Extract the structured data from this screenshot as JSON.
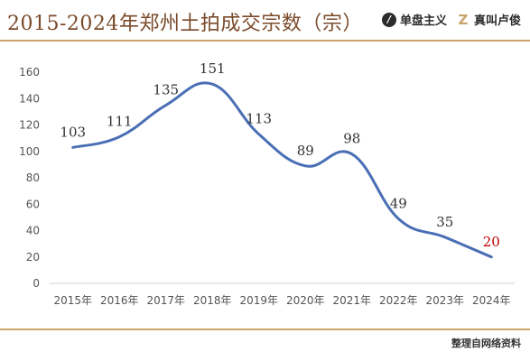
{
  "header": {
    "title": "2015-2024年郑州土拍成交宗数（宗）",
    "logo1_text": "单盘主义",
    "logo1_icon": "brand-1-icon",
    "logo2_text": "真叫卢俊",
    "logo2_icon": "brand-z-icon"
  },
  "footer": {
    "source": "整理自网络资料"
  },
  "colors": {
    "line": "#4a6fb5",
    "accent_label": "#c00000",
    "title": "#7a4a2a",
    "rule": "#c9a46a"
  },
  "chart_data": {
    "type": "line",
    "title": "2015-2024年郑州土拍成交宗数（宗）",
    "xlabel": "",
    "ylabel": "",
    "categories": [
      "2015年",
      "2016年",
      "2017年",
      "2018年",
      "2019年",
      "2020年",
      "2021年",
      "2022年",
      "2023年",
      "2024年"
    ],
    "values": [
      103,
      111,
      135,
      151,
      113,
      89,
      98,
      49,
      35,
      20
    ],
    "ylim": [
      0,
      160
    ],
    "yticks": [
      0,
      20,
      40,
      60,
      80,
      100,
      120,
      140,
      160
    ],
    "highlight_index": 9,
    "grid": false,
    "smooth": true
  }
}
